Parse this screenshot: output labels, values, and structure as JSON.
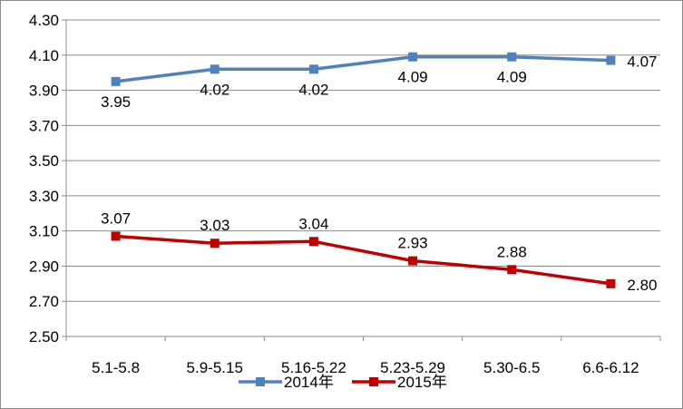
{
  "chart_data": {
    "type": "line",
    "title": "",
    "xlabel": "",
    "ylabel": "",
    "categories": [
      "5.1-5.8",
      "5.9-5.15",
      "5.16-5.22",
      "5.23-5.29",
      "5.30-6.5",
      "6.6-6.12"
    ],
    "ylim": [
      2.5,
      4.3
    ],
    "yticks": [
      "2.50",
      "2.70",
      "2.90",
      "3.10",
      "3.30",
      "3.50",
      "3.70",
      "3.90",
      "4.10",
      "4.30"
    ],
    "grid": true,
    "legend": "bottom",
    "series": [
      {
        "name": "2014年",
        "color": "#4f81bd",
        "values": [
          3.95,
          4.02,
          4.02,
          4.09,
          4.09,
          4.07
        ],
        "labels": [
          "3.95",
          "4.02",
          "4.02",
          "4.09",
          "4.09",
          "4.07"
        ]
      },
      {
        "name": "2015年",
        "color": "#c00000",
        "values": [
          3.07,
          3.03,
          3.04,
          2.93,
          2.88,
          2.8
        ],
        "labels": [
          "3.07",
          "3.03",
          "3.04",
          "2.93",
          "2.88",
          "2.80"
        ]
      }
    ]
  }
}
